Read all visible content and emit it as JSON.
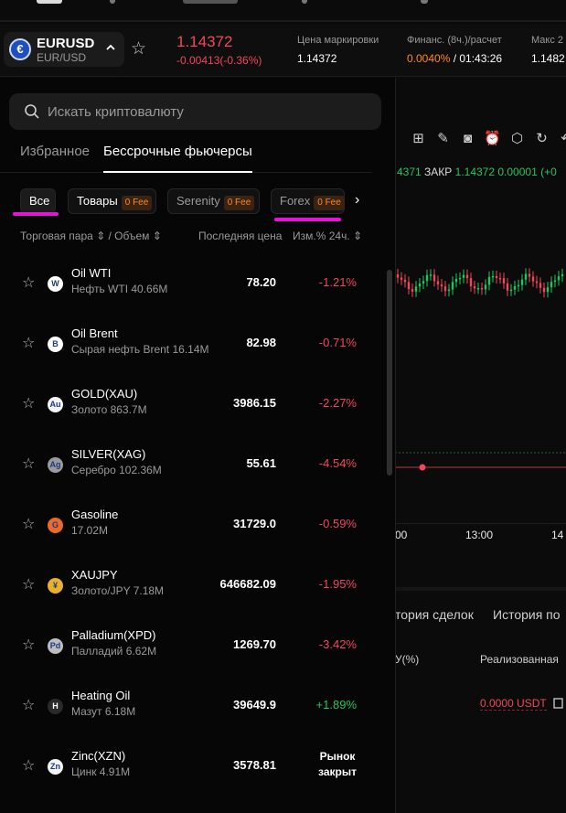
{
  "header": {
    "pair_symbol": "EURUSD",
    "pair_sub": "EUR/USD",
    "price": "1.14372",
    "change": "-0.00413(-0.36%)",
    "stats": [
      {
        "label": "Цена маркировки",
        "value": "1.14372"
      },
      {
        "label": "Финанс. (8ч.)/расчет",
        "value_orange": "0.0040%",
        "value_rest": " / 01:43:26"
      },
      {
        "label": "Макс 2",
        "value": "1.1482"
      }
    ]
  },
  "chart": {
    "ohlc_prefix": "4371",
    "close_label": "ЗАКР",
    "close_value": "1.14372",
    "close_change": "0.00001 (+0",
    "time_ticks": [
      "00",
      "13:00",
      "14"
    ],
    "bottom_tabs": [
      "тория сделок",
      "История по"
    ],
    "row_header": [
      "У(%)",
      "Реализованная"
    ],
    "realized_value": "0.0000 USDT"
  },
  "panel": {
    "search_placeholder": "Искать криптовалюту",
    "tabs": [
      "Избранное",
      "Бессрочные фьючерсы"
    ],
    "chips": [
      {
        "label": "Все",
        "fee": ""
      },
      {
        "label": "Товары",
        "fee": "0 Fee"
      },
      {
        "label": "Serenity",
        "fee": "0 Fee"
      },
      {
        "label": "Forex",
        "fee": "0 Fee"
      }
    ],
    "col_pair": "Торговая пара ⇕ / Объем ⇕",
    "col_price": "Последняя цена",
    "col_change": "Изм.% 24ч. ⇕"
  },
  "rows": [
    {
      "name": "Oil WTI",
      "sub": "Нефть WTI 40.66M",
      "price": "78.20",
      "change": "-1.21%",
      "dir": "neg",
      "icon": "oil-wti-icon",
      "icon_color": "#ffffff",
      "icon_text": "W"
    },
    {
      "name": "Oil Brent",
      "sub": "Сырая нефть Brent 16.14M",
      "price": "82.98",
      "change": "-0.71%",
      "dir": "neg",
      "icon": "oil-brent-icon",
      "icon_color": "#ffffff",
      "icon_text": "B"
    },
    {
      "name": "GOLD(XAU)",
      "sub": "Золото 863.7M",
      "price": "3986.15",
      "change": "-2.27%",
      "dir": "neg",
      "icon": "gold-icon",
      "icon_color": "#f4f4f4",
      "icon_text": "Au"
    },
    {
      "name": "SILVER(XAG)",
      "sub": "Серебро 102.36M",
      "price": "55.61",
      "change": "-4.54%",
      "dir": "neg",
      "icon": "silver-icon",
      "icon_color": "#9a9a9a",
      "icon_text": "Ag"
    },
    {
      "name": "Gasoline",
      "sub": "17.02M",
      "price": "31729.0",
      "change": "-0.59%",
      "dir": "neg",
      "icon": "gasoline-icon",
      "icon_color": "#ea6a2a",
      "icon_text": "G"
    },
    {
      "name": "XAUJPY",
      "sub": "Золото/JPY 7.18M",
      "price": "646682.09",
      "change": "-1.95%",
      "dir": "neg",
      "icon": "xaujpy-icon",
      "icon_color": "#e9b02c",
      "icon_text": "¥"
    },
    {
      "name": "Palladium(XPD)",
      "sub": "Палладий 6.62M",
      "price": "1269.70",
      "change": "-3.42%",
      "dir": "neg",
      "icon": "palladium-icon",
      "icon_color": "#bdbdbd",
      "icon_text": "Pd"
    },
    {
      "name": "Heating Oil",
      "sub": "Мазут 6.18M",
      "price": "39649.9",
      "change": "+1.89%",
      "dir": "pos",
      "icon": "heating-oil-icon",
      "icon_color": "#2a2a2a",
      "icon_text": "H"
    },
    {
      "name": "Zinc(XZN)",
      "sub": "Цинк 4.91M",
      "price": "3578.81",
      "change": "",
      "closed1": "Рынок",
      "closed2": "закрыт",
      "dir": "closed",
      "icon": "zinc-icon",
      "icon_color": "#f4f4f4",
      "icon_text": "Zn"
    }
  ]
}
